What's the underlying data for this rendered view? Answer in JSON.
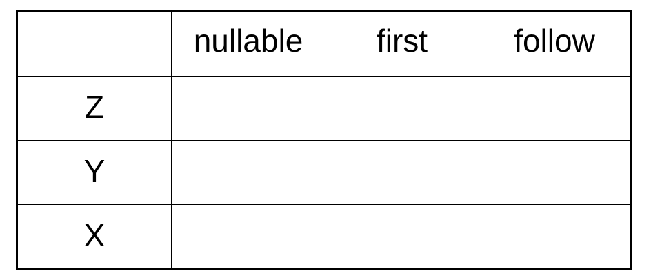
{
  "table": {
    "corner": "",
    "columns": [
      "nullable",
      "first",
      "follow"
    ],
    "rows": [
      {
        "label": "Z",
        "cells": [
          "",
          "",
          ""
        ]
      },
      {
        "label": "Y",
        "cells": [
          "",
          "",
          ""
        ]
      },
      {
        "label": "X",
        "cells": [
          "",
          "",
          ""
        ]
      }
    ]
  }
}
